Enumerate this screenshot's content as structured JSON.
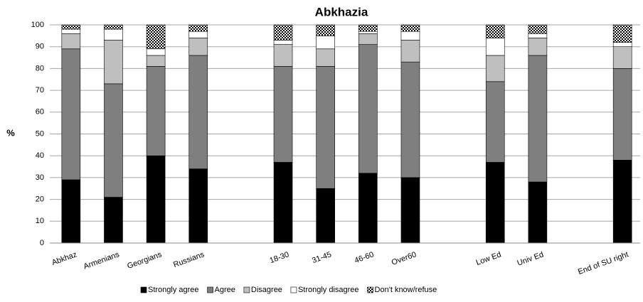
{
  "chart_data": {
    "type": "stacked_bar",
    "title": "Abkhazia",
    "y_label": "%",
    "categories": [
      "Abkhaz",
      "Armenians",
      "Georgians",
      "Russians",
      null,
      "18-30",
      "31-45",
      "46-60",
      "Over60",
      null,
      "Low Ed",
      "Univ Ed",
      null,
      "End of SU right"
    ],
    "series": [
      {
        "name": "Strongly agree",
        "color": "#000000",
        "values": [
          29,
          21,
          40,
          34,
          null,
          37,
          25,
          32,
          30,
          null,
          37,
          28,
          null,
          38
        ]
      },
      {
        "name": "Agree",
        "color": "#7f7f7f",
        "values": [
          60,
          52,
          41,
          52,
          null,
          44,
          56,
          59,
          53,
          null,
          37,
          58,
          null,
          42
        ]
      },
      {
        "name": "Disagree",
        "color": "#bfbfbf",
        "values": [
          7,
          20,
          5,
          8,
          null,
          10,
          8,
          5,
          10,
          null,
          12,
          8,
          null,
          10
        ]
      },
      {
        "name": "Strongly disagree",
        "color": "#ffffff",
        "values": [
          2,
          5,
          3,
          3,
          null,
          2,
          6,
          1,
          4,
          null,
          8,
          2,
          null,
          2
        ]
      },
      {
        "name": "Don't know/refuse",
        "color": "#000000",
        "pattern": "checker",
        "values": [
          2,
          2,
          11,
          3,
          null,
          7,
          5,
          3,
          3,
          null,
          6,
          4,
          null,
          8
        ]
      }
    ],
    "ylim": [
      0,
      100
    ],
    "yticks": [
      0,
      10,
      20,
      30,
      40,
      50,
      60,
      70,
      80,
      90,
      100
    ],
    "grid": true,
    "legend": "bottom"
  }
}
